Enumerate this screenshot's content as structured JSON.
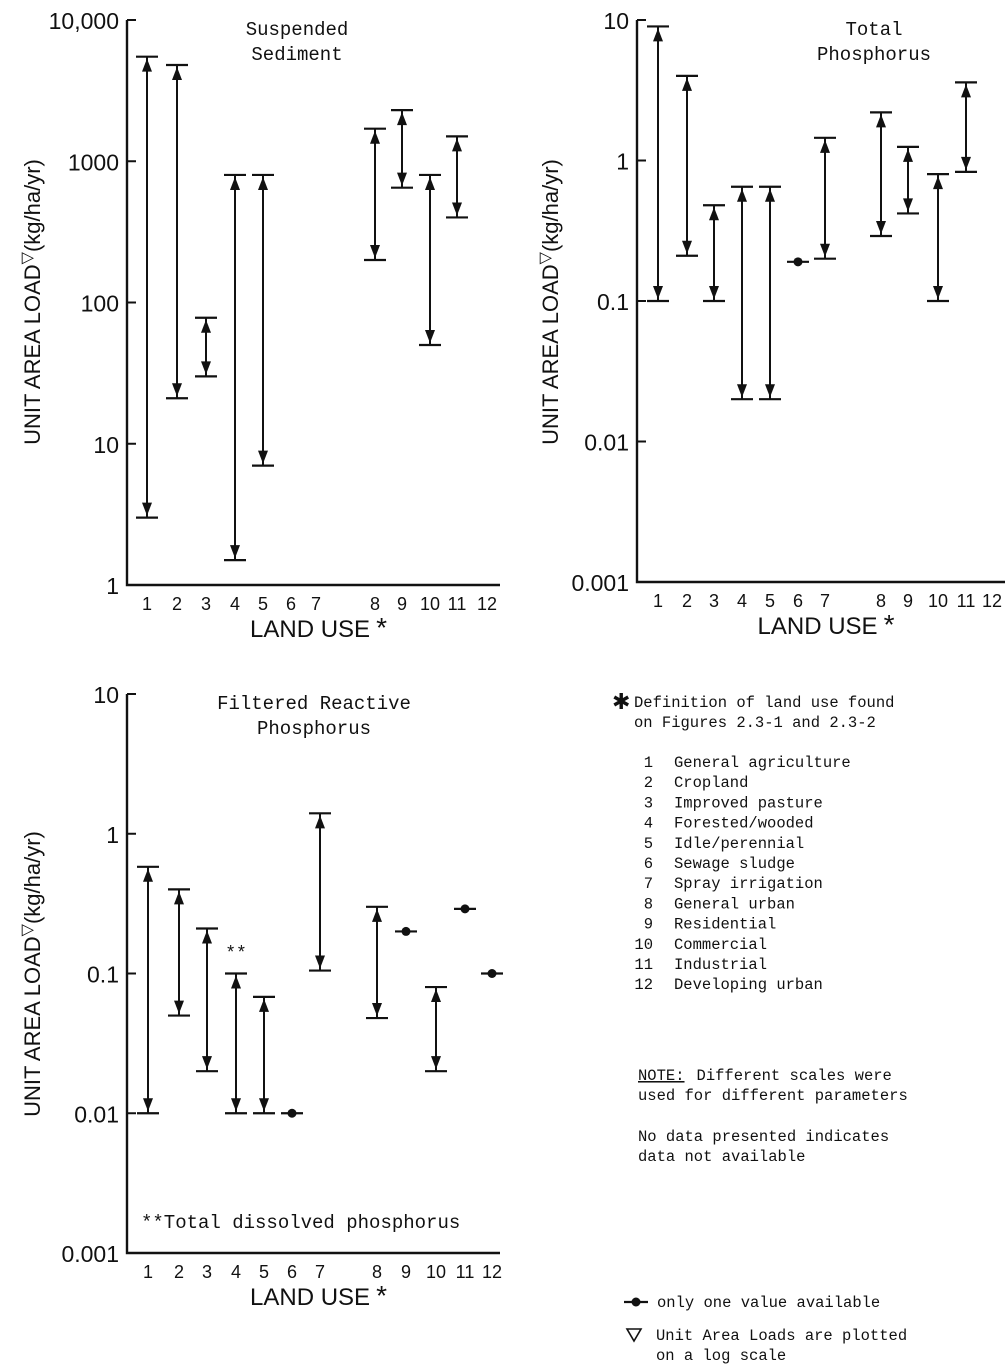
{
  "chart_data": [
    {
      "type": "range",
      "title": "Suspended\nSediment",
      "ylabel": "UNIT AREA LOAD",
      "ylabel_suffix": "(kg/ha/yr)",
      "xlabel": "LAND USE",
      "xlabel_mark": "*",
      "yscale": "log",
      "ylim": [
        1,
        10000
      ],
      "yticks": [
        {
          "value": 1,
          "label": "1"
        },
        {
          "value": 10,
          "label": "10"
        },
        {
          "value": 100,
          "label": "100"
        },
        {
          "value": 1000,
          "label": "1000"
        },
        {
          "value": 10000,
          "label": "10,000"
        }
      ],
      "xticks": [
        "1",
        "2",
        "3",
        "4",
        "5",
        "6",
        "7",
        "8",
        "9",
        "10",
        "11",
        "12"
      ],
      "ranges": [
        {
          "x": 1,
          "low": 3,
          "high": 5500
        },
        {
          "x": 2,
          "low": 21,
          "high": 4800
        },
        {
          "x": 3,
          "low": 30,
          "high": 78
        },
        {
          "x": 4,
          "low": 1.5,
          "high": 800
        },
        {
          "x": 5,
          "low": 7,
          "high": 800
        },
        {
          "x": 8,
          "low": 200,
          "high": 1700
        },
        {
          "x": 9,
          "low": 650,
          "high": 2300
        },
        {
          "x": 10,
          "low": 50,
          "high": 800
        },
        {
          "x": 11,
          "low": 400,
          "high": 1500
        }
      ],
      "points": []
    },
    {
      "type": "range",
      "title": "Total\nPhosphorus",
      "ylabel": "UNIT AREA LOAD",
      "ylabel_suffix": "(kg/ha/yr)",
      "xlabel": "LAND USE",
      "xlabel_mark": "*",
      "yscale": "log",
      "ylim": [
        0.001,
        10
      ],
      "yticks": [
        {
          "value": 0.001,
          "label": "0.001"
        },
        {
          "value": 0.01,
          "label": "0.01"
        },
        {
          "value": 0.1,
          "label": "0.1"
        },
        {
          "value": 1,
          "label": "1"
        },
        {
          "value": 10,
          "label": "10"
        }
      ],
      "xticks": [
        "1",
        "2",
        "3",
        "4",
        "5",
        "6",
        "7",
        "8",
        "9",
        "10",
        "11",
        "12"
      ],
      "ranges": [
        {
          "x": 1,
          "low": 0.1,
          "high": 9
        },
        {
          "x": 2,
          "low": 0.21,
          "high": 4
        },
        {
          "x": 3,
          "low": 0.1,
          "high": 0.48
        },
        {
          "x": 4,
          "low": 0.02,
          "high": 0.65
        },
        {
          "x": 5,
          "low": 0.02,
          "high": 0.65
        },
        {
          "x": 7,
          "low": 0.2,
          "high": 1.45
        },
        {
          "x": 8,
          "low": 0.29,
          "high": 2.2
        },
        {
          "x": 9,
          "low": 0.42,
          "high": 1.25
        },
        {
          "x": 10,
          "low": 0.1,
          "high": 0.8
        },
        {
          "x": 11,
          "low": 0.83,
          "high": 3.6
        }
      ],
      "points": [
        {
          "x": 6,
          "value": 0.19
        }
      ]
    },
    {
      "type": "range",
      "title": "Filtered Reactive\nPhosphorus",
      "ylabel": "UNIT AREA LOAD",
      "ylabel_suffix": "(kg/ha/yr)",
      "xlabel": "LAND USE",
      "xlabel_mark": "*",
      "yscale": "log",
      "ylim": [
        0.001,
        10
      ],
      "yticks": [
        {
          "value": 0.001,
          "label": "0.001"
        },
        {
          "value": 0.01,
          "label": "0.01"
        },
        {
          "value": 0.1,
          "label": "0.1"
        },
        {
          "value": 1,
          "label": "1"
        },
        {
          "value": 10,
          "label": "10"
        }
      ],
      "xticks": [
        "1",
        "2",
        "3",
        "4",
        "5",
        "6",
        "7",
        "8",
        "9",
        "10",
        "11",
        "12"
      ],
      "ranges": [
        {
          "x": 1,
          "low": 0.01,
          "high": 0.58
        },
        {
          "x": 2,
          "low": 0.05,
          "high": 0.4
        },
        {
          "x": 3,
          "low": 0.02,
          "high": 0.21
        },
        {
          "x": 4,
          "low": 0.01,
          "high": 0.1
        },
        {
          "x": 5,
          "low": 0.01,
          "high": 0.068
        },
        {
          "x": 7,
          "low": 0.105,
          "high": 1.4
        },
        {
          "x": 8,
          "low": 0.048,
          "high": 0.3
        },
        {
          "x": 10,
          "low": 0.02,
          "high": 0.08
        }
      ],
      "points": [
        {
          "x": 6,
          "value": 0.01
        },
        {
          "x": 9,
          "value": 0.2
        },
        {
          "x": 11,
          "value": 0.29
        },
        {
          "x": 12,
          "value": 0.1
        }
      ],
      "annotations": [
        {
          "x": 4,
          "value": 0.12,
          "text": "**"
        }
      ],
      "footnote": "**Total dissolved phosphorus"
    }
  ],
  "legend": {
    "definition_mark": "*",
    "definition_lines": [
      "Definition of land use found",
      "on Figures 2.3-1 and 2.3-2"
    ],
    "land_uses": [
      {
        "num": "1",
        "name": "General agriculture"
      },
      {
        "num": "2",
        "name": "Cropland"
      },
      {
        "num": "3",
        "name": "Improved pasture"
      },
      {
        "num": "4",
        "name": "Forested/wooded"
      },
      {
        "num": "5",
        "name": "Idle/perennial"
      },
      {
        "num": "6",
        "name": "Sewage sludge"
      },
      {
        "num": "7",
        "name": "Spray irrigation"
      },
      {
        "num": "8",
        "name": "General urban"
      },
      {
        "num": "9",
        "name": "Residential"
      },
      {
        "num": "10",
        "name": "Commercial"
      },
      {
        "num": "11",
        "name": "Industrial"
      },
      {
        "num": "12",
        "name": "Developing urban"
      }
    ],
    "note_label": "NOTE:",
    "note_rest": "Different scales were",
    "note_line2": "used for different parameters",
    "nodata_lines": [
      "No data presented indicates",
      "data not available"
    ],
    "single_value_text": "only one value available",
    "logscale_lines": [
      "Unit Area Loads are plotted",
      "on a log scale"
    ]
  }
}
